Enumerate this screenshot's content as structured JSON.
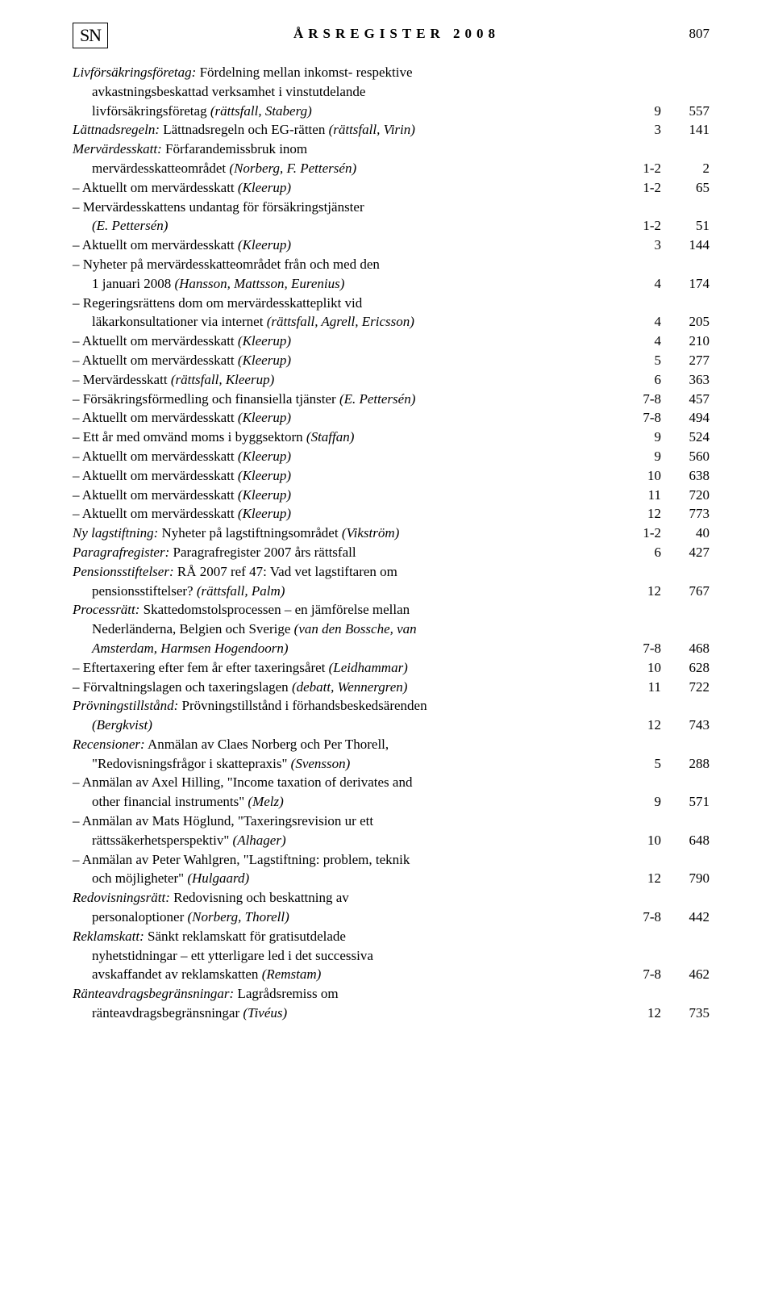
{
  "header": {
    "logo": "SN",
    "title": "ÅRSREGISTER 2008",
    "page": "807"
  },
  "lines": [
    {
      "cls": "hang",
      "parts": [
        {
          "i": true,
          "t": "Livförsäkringsföretag:"
        },
        {
          "i": false,
          "t": " Fördelning mellan inkomst- respektive"
        }
      ],
      "issue": "",
      "pg": ""
    },
    {
      "cls": "indent",
      "parts": [
        {
          "i": false,
          "t": "avkastningsbeskattad verksamhet i vinstutdelande"
        }
      ],
      "issue": "",
      "pg": ""
    },
    {
      "cls": "indent",
      "parts": [
        {
          "i": false,
          "t": "livförsäkringsföretag "
        },
        {
          "i": true,
          "t": "(rättsfall, Staberg)"
        }
      ],
      "issue": "9",
      "pg": "557"
    },
    {
      "cls": "hang",
      "parts": [
        {
          "i": true,
          "t": "Lättnadsregeln:"
        },
        {
          "i": false,
          "t": " Lättnadsregeln och EG-rätten "
        },
        {
          "i": true,
          "t": "(rättsfall, Virin)"
        }
      ],
      "issue": "3",
      "pg": "141"
    },
    {
      "cls": "hang",
      "parts": [
        {
          "i": true,
          "t": "Mervärdesskatt:"
        },
        {
          "i": false,
          "t": " Förfarandemissbruk inom"
        }
      ],
      "issue": "",
      "pg": ""
    },
    {
      "cls": "indent",
      "parts": [
        {
          "i": false,
          "t": "mervärdesskatteområdet "
        },
        {
          "i": true,
          "t": "(Norberg, F. Pettersén)"
        }
      ],
      "issue": "1-2",
      "pg": "2"
    },
    {
      "cls": "hang",
      "parts": [
        {
          "i": false,
          "t": "– Aktuellt om mervärdesskatt "
        },
        {
          "i": true,
          "t": "(Kleerup)"
        }
      ],
      "issue": "1-2",
      "pg": "65"
    },
    {
      "cls": "hang",
      "parts": [
        {
          "i": false,
          "t": "– Mervärdesskattens undantag för försäkringstjänster"
        }
      ],
      "issue": "",
      "pg": ""
    },
    {
      "cls": "indent",
      "parts": [
        {
          "i": true,
          "t": "(E. Pettersén)"
        }
      ],
      "issue": "1-2",
      "pg": "51"
    },
    {
      "cls": "hang",
      "parts": [
        {
          "i": false,
          "t": "– Aktuellt om mervärdesskatt "
        },
        {
          "i": true,
          "t": "(Kleerup)"
        }
      ],
      "issue": "3",
      "pg": "144"
    },
    {
      "cls": "hang",
      "parts": [
        {
          "i": false,
          "t": "– Nyheter på mervärdesskatteområdet från och med den"
        }
      ],
      "issue": "",
      "pg": ""
    },
    {
      "cls": "indent",
      "parts": [
        {
          "i": false,
          "t": "1 januari 2008 "
        },
        {
          "i": true,
          "t": "(Hansson, Mattsson, Eurenius)"
        }
      ],
      "issue": "4",
      "pg": "174"
    },
    {
      "cls": "hang",
      "parts": [
        {
          "i": false,
          "t": "– Regeringsrättens dom om mervärdesskatteplikt vid"
        }
      ],
      "issue": "",
      "pg": ""
    },
    {
      "cls": "indent",
      "parts": [
        {
          "i": false,
          "t": "läkarkonsultationer via internet "
        },
        {
          "i": true,
          "t": "(rättsfall, Agrell, Ericsson)"
        }
      ],
      "issue": "4",
      "pg": "205"
    },
    {
      "cls": "hang",
      "parts": [
        {
          "i": false,
          "t": "– Aktuellt om mervärdesskatt "
        },
        {
          "i": true,
          "t": "(Kleerup)"
        }
      ],
      "issue": "4",
      "pg": "210"
    },
    {
      "cls": "hang",
      "parts": [
        {
          "i": false,
          "t": "– Aktuellt om mervärdesskatt "
        },
        {
          "i": true,
          "t": "(Kleerup)"
        }
      ],
      "issue": "5",
      "pg": "277"
    },
    {
      "cls": "hang",
      "parts": [
        {
          "i": false,
          "t": "– Mervärdesskatt "
        },
        {
          "i": true,
          "t": "(rättsfall, Kleerup)"
        }
      ],
      "issue": "6",
      "pg": "363"
    },
    {
      "cls": "hang",
      "parts": [
        {
          "i": false,
          "t": "– Försäkringsförmedling och finansiella tjänster "
        },
        {
          "i": true,
          "t": "(E. Pettersén)"
        }
      ],
      "issue": "7-8",
      "pg": "457"
    },
    {
      "cls": "hang",
      "parts": [
        {
          "i": false,
          "t": "– Aktuellt om mervärdesskatt "
        },
        {
          "i": true,
          "t": "(Kleerup)"
        }
      ],
      "issue": "7-8",
      "pg": "494"
    },
    {
      "cls": "hang",
      "parts": [
        {
          "i": false,
          "t": "– Ett år med omvänd moms i byggsektorn "
        },
        {
          "i": true,
          "t": "(Staffan)"
        }
      ],
      "issue": "9",
      "pg": "524"
    },
    {
      "cls": "hang",
      "parts": [
        {
          "i": false,
          "t": "– Aktuellt om mervärdesskatt "
        },
        {
          "i": true,
          "t": "(Kleerup)"
        }
      ],
      "issue": "9",
      "pg": "560"
    },
    {
      "cls": "hang",
      "parts": [
        {
          "i": false,
          "t": "– Aktuellt om mervärdesskatt "
        },
        {
          "i": true,
          "t": "(Kleerup)"
        }
      ],
      "issue": "10",
      "pg": "638"
    },
    {
      "cls": "hang",
      "parts": [
        {
          "i": false,
          "t": "– Aktuellt om mervärdesskatt "
        },
        {
          "i": true,
          "t": "(Kleerup)"
        }
      ],
      "issue": "11",
      "pg": "720"
    },
    {
      "cls": "hang",
      "parts": [
        {
          "i": false,
          "t": "– Aktuellt om mervärdesskatt "
        },
        {
          "i": true,
          "t": "(Kleerup)"
        }
      ],
      "issue": "12",
      "pg": "773"
    },
    {
      "cls": "hang",
      "parts": [
        {
          "i": true,
          "t": "Ny lagstiftning:"
        },
        {
          "i": false,
          "t": " Nyheter på lagstiftningsområdet "
        },
        {
          "i": true,
          "t": "(Vikström)"
        }
      ],
      "issue": "1-2",
      "pg": "40"
    },
    {
      "cls": "hang",
      "parts": [
        {
          "i": true,
          "t": "Paragrafregister:"
        },
        {
          "i": false,
          "t": " Paragrafregister 2007 års rättsfall"
        }
      ],
      "issue": "6",
      "pg": "427"
    },
    {
      "cls": "hang",
      "parts": [
        {
          "i": true,
          "t": "Pensionsstiftelser:"
        },
        {
          "i": false,
          "t": " RÅ 2007 ref 47: Vad vet lagstiftaren om"
        }
      ],
      "issue": "",
      "pg": ""
    },
    {
      "cls": "indent",
      "parts": [
        {
          "i": false,
          "t": "pensionsstiftelser? "
        },
        {
          "i": true,
          "t": "(rättsfall, Palm)"
        }
      ],
      "issue": "12",
      "pg": "767"
    },
    {
      "cls": "hang",
      "parts": [
        {
          "i": true,
          "t": "Processrätt:"
        },
        {
          "i": false,
          "t": " Skattedomstolsprocessen – en jämförelse mellan"
        }
      ],
      "issue": "",
      "pg": ""
    },
    {
      "cls": "indent",
      "parts": [
        {
          "i": false,
          "t": "Nederländerna, Belgien och Sverige "
        },
        {
          "i": true,
          "t": "(van den Bossche, van"
        }
      ],
      "issue": "",
      "pg": ""
    },
    {
      "cls": "indent",
      "parts": [
        {
          "i": true,
          "t": "Amsterdam, Harmsen Hogendoorn)"
        }
      ],
      "issue": "7-8",
      "pg": "468"
    },
    {
      "cls": "hang",
      "parts": [
        {
          "i": false,
          "t": "– Eftertaxering efter fem år efter taxeringsåret "
        },
        {
          "i": true,
          "t": "(Leidhammar)"
        }
      ],
      "issue": "10",
      "pg": "628"
    },
    {
      "cls": "hang",
      "parts": [
        {
          "i": false,
          "t": "– Förvaltningslagen och taxeringslagen "
        },
        {
          "i": true,
          "t": "(debatt, Wennergren)"
        }
      ],
      "issue": "11",
      "pg": "722"
    },
    {
      "cls": "hang",
      "parts": [
        {
          "i": true,
          "t": "Prövningstillstånd:"
        },
        {
          "i": false,
          "t": " Prövningstillstånd i förhandsbeskedsärenden"
        }
      ],
      "issue": "",
      "pg": ""
    },
    {
      "cls": "indent",
      "parts": [
        {
          "i": true,
          "t": "(Bergkvist)"
        }
      ],
      "issue": "12",
      "pg": "743"
    },
    {
      "cls": "hang",
      "parts": [
        {
          "i": true,
          "t": "Recensioner:"
        },
        {
          "i": false,
          "t": " Anmälan av Claes Norberg och Per Thorell,"
        }
      ],
      "issue": "",
      "pg": ""
    },
    {
      "cls": "indent",
      "parts": [
        {
          "i": false,
          "t": "\"Redovisningsfrågor i skattepraxis\" "
        },
        {
          "i": true,
          "t": "(Svensson)"
        }
      ],
      "issue": "5",
      "pg": "288"
    },
    {
      "cls": "hang",
      "parts": [
        {
          "i": false,
          "t": "– Anmälan av Axel Hilling, \"Income taxation of derivates and"
        }
      ],
      "issue": "",
      "pg": ""
    },
    {
      "cls": "indent",
      "parts": [
        {
          "i": false,
          "t": "other financial instruments\" "
        },
        {
          "i": true,
          "t": "(Melz)"
        }
      ],
      "issue": "9",
      "pg": "571"
    },
    {
      "cls": "hang",
      "parts": [
        {
          "i": false,
          "t": "– Anmälan av Mats Höglund, \"Taxeringsrevision ur ett"
        }
      ],
      "issue": "",
      "pg": ""
    },
    {
      "cls": "indent",
      "parts": [
        {
          "i": false,
          "t": "rättssäkerhetsperspektiv\" "
        },
        {
          "i": true,
          "t": "(Alhager)"
        }
      ],
      "issue": "10",
      "pg": "648"
    },
    {
      "cls": "hang",
      "parts": [
        {
          "i": false,
          "t": "– Anmälan av Peter Wahlgren, \"Lagstiftning: problem, teknik"
        }
      ],
      "issue": "",
      "pg": ""
    },
    {
      "cls": "indent",
      "parts": [
        {
          "i": false,
          "t": "och möjligheter\" "
        },
        {
          "i": true,
          "t": "(Hulgaard)"
        }
      ],
      "issue": "12",
      "pg": "790"
    },
    {
      "cls": "hang",
      "parts": [
        {
          "i": true,
          "t": "Redovisningsrätt:"
        },
        {
          "i": false,
          "t": " Redovisning och beskattning av"
        }
      ],
      "issue": "",
      "pg": ""
    },
    {
      "cls": "indent",
      "parts": [
        {
          "i": false,
          "t": "personaloptioner "
        },
        {
          "i": true,
          "t": "(Norberg, Thorell)"
        }
      ],
      "issue": "7-8",
      "pg": "442"
    },
    {
      "cls": "hang",
      "parts": [
        {
          "i": true,
          "t": "Reklamskatt:"
        },
        {
          "i": false,
          "t": " Sänkt reklamskatt för gratisutdelade"
        }
      ],
      "issue": "",
      "pg": ""
    },
    {
      "cls": "indent",
      "parts": [
        {
          "i": false,
          "t": "nyhetstidningar – ett ytterligare led i det successiva"
        }
      ],
      "issue": "",
      "pg": ""
    },
    {
      "cls": "indent",
      "parts": [
        {
          "i": false,
          "t": "avskaffandet av reklamskatten "
        },
        {
          "i": true,
          "t": "(Remstam)"
        }
      ],
      "issue": "7-8",
      "pg": "462"
    },
    {
      "cls": "hang",
      "parts": [
        {
          "i": true,
          "t": "Ränteavdragsbegränsningar:"
        },
        {
          "i": false,
          "t": " Lagrådsremiss om"
        }
      ],
      "issue": "",
      "pg": ""
    },
    {
      "cls": "indent",
      "parts": [
        {
          "i": false,
          "t": "ränteavdragsbegränsningar "
        },
        {
          "i": true,
          "t": "(Tivéus)"
        }
      ],
      "issue": "12",
      "pg": "735"
    }
  ]
}
